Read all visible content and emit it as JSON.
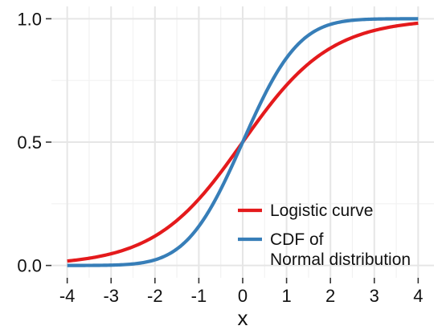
{
  "chart_data": {
    "type": "line",
    "title": "",
    "xlabel": "x",
    "ylabel": "",
    "xlim": [
      -4,
      4
    ],
    "ylim": [
      0,
      1
    ],
    "x_ticks": [
      -4,
      -3,
      -2,
      -1,
      0,
      1,
      2,
      3,
      4
    ],
    "x_tick_labels": [
      "-4",
      "-3",
      "-2",
      "-1",
      "0",
      "1",
      "2",
      "3",
      "4"
    ],
    "y_ticks": [
      0,
      0.5,
      1
    ],
    "y_tick_labels": [
      "0.0",
      "0.5",
      "1.0"
    ],
    "grid": true,
    "legend_position": "bottom-right",
    "x": [
      -4,
      -3,
      -2,
      -1,
      0,
      1,
      2,
      3,
      4
    ],
    "series": [
      {
        "name": "Logistic curve",
        "color": "#e41a1c",
        "values": [
          0.018,
          0.047,
          0.119,
          0.269,
          0.5,
          0.731,
          0.881,
          0.953,
          0.982
        ]
      },
      {
        "name": "CDF of\nNormal distribution",
        "color": "#377eb8",
        "values": [
          0.0,
          0.001,
          0.023,
          0.159,
          0.5,
          0.841,
          0.977,
          0.999,
          1.0
        ]
      }
    ]
  }
}
